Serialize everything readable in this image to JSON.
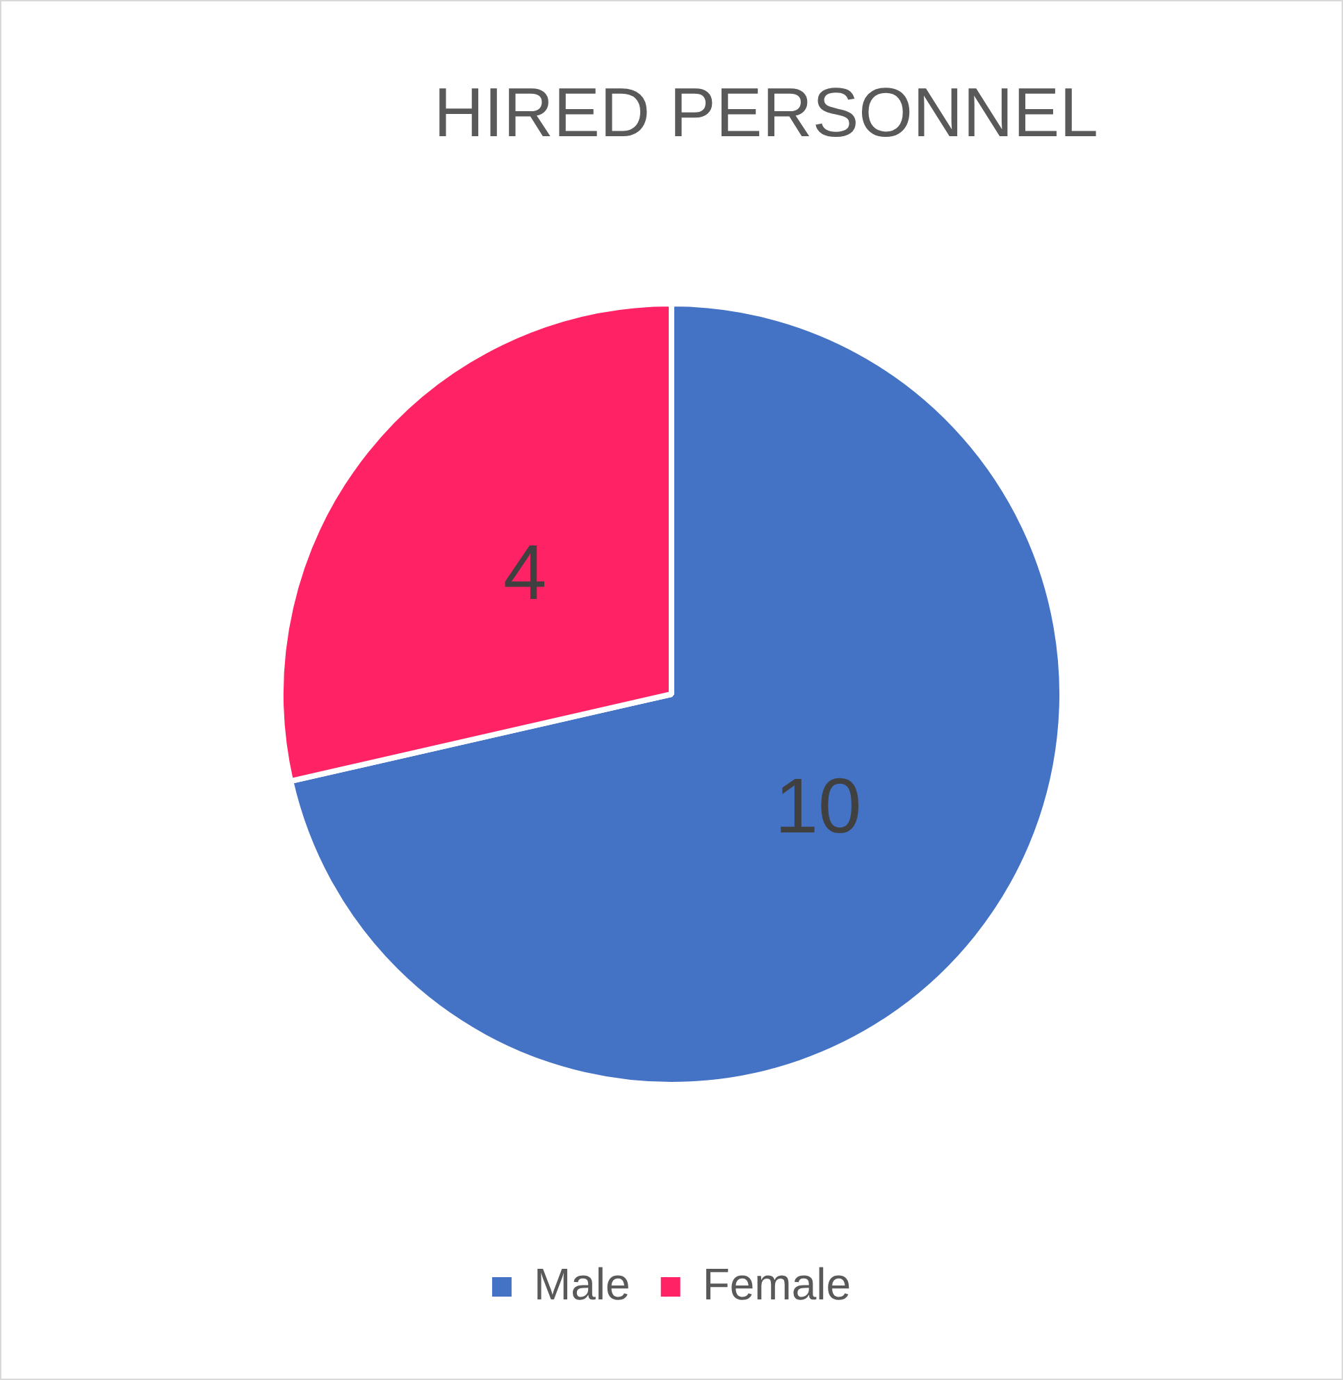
{
  "chart_data": {
    "type": "pie",
    "title": "HIRED PERSONNEL",
    "categories": [
      "Male",
      "Female"
    ],
    "values": [
      10,
      4
    ],
    "colors": [
      "#4472c4",
      "#ff2366"
    ],
    "data_labels": true,
    "legend": "bottom"
  }
}
